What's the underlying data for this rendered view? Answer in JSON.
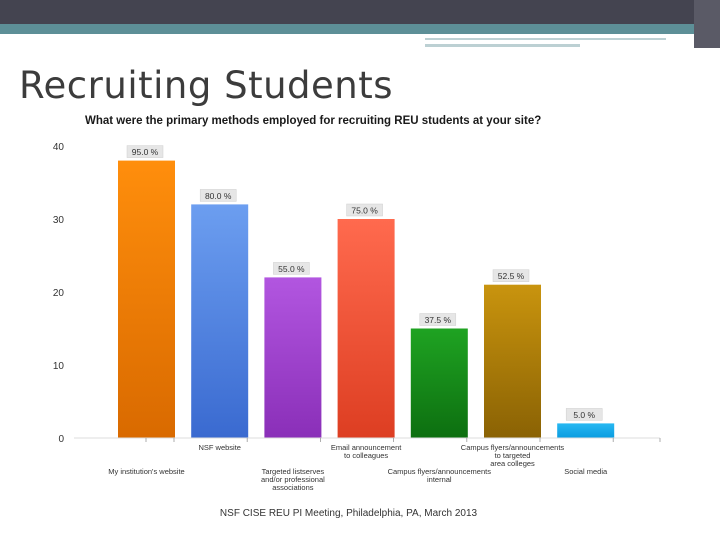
{
  "slide": {
    "title": "Recruiting Students",
    "footer": "NSF CISE REU PI Meeting, Philadelphia, PA, March 2013"
  },
  "chart_data": {
    "type": "bar",
    "title": "What were the primary methods employed for recruiting REU students at your site?",
    "xlabel": "",
    "ylabel": "",
    "ylim": [
      0,
      40
    ],
    "yticks": [
      0,
      10,
      20,
      30,
      40
    ],
    "grid": false,
    "legend": "none",
    "categories": [
      "My institution's website",
      "NSF website",
      "Targeted listserves and/or professional associations",
      "Email announcement to colleagues",
      "Campus flyers/announcements internal",
      "Campus flyers/announcements to targeted area colleges",
      "Social media"
    ],
    "values": [
      38,
      32,
      22,
      30,
      15,
      21,
      2
    ],
    "data_labels": [
      "95.0 %",
      "80.0 %",
      "55.0 %",
      "75.0 %",
      "37.5 %",
      "52.5 %",
      "5.0 %"
    ],
    "colors": [
      [
        "#ff8e0c",
        "#d96a00"
      ],
      [
        "#6c9ef0",
        "#3a6ad0"
      ],
      [
        "#b256e0",
        "#8a2fb8"
      ],
      [
        "#ff6a4e",
        "#dd3e22"
      ],
      [
        "#1fa322",
        "#0d6f10"
      ],
      [
        "#c9940e",
        "#8a6204"
      ],
      [
        "#27b8f2",
        "#0a9ce0"
      ]
    ]
  }
}
